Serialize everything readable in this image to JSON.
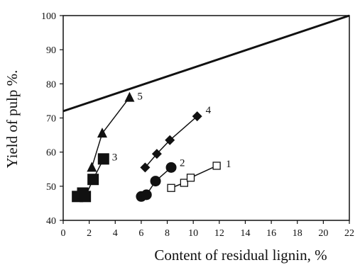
{
  "chart_data": {
    "type": "scatter",
    "title": "",
    "xlabel": "Content of residual lignin, %",
    "ylabel": "Yield of pulp %.",
    "xlim": [
      0,
      22
    ],
    "ylim": [
      40,
      100
    ],
    "xticks": [
      "0",
      "2",
      "4",
      "6",
      "8",
      "10",
      "12",
      "14",
      "16",
      "18",
      "20",
      "22"
    ],
    "yticks": [
      "40",
      "50",
      "60",
      "70",
      "80",
      "90",
      "100"
    ],
    "grid": false,
    "reference_line": {
      "x": [
        0,
        22
      ],
      "y": [
        72,
        100
      ]
    },
    "series": [
      {
        "name": "1",
        "marker": "open-square",
        "x": [
          8.3,
          9.3,
          9.8,
          11.8
        ],
        "y": [
          49.5,
          51,
          52.5,
          56
        ]
      },
      {
        "name": "2",
        "marker": "filled-circle",
        "x": [
          6.0,
          6.4,
          7.1,
          8.3
        ],
        "y": [
          47,
          47.5,
          51.5,
          55.5
        ]
      },
      {
        "name": "3",
        "marker": "filled-square",
        "x": [
          1.1,
          1.5,
          1.7,
          2.3,
          3.1
        ],
        "y": [
          47,
          48,
          47,
          52,
          58
        ]
      },
      {
        "name": "4",
        "marker": "filled-diamond",
        "x": [
          6.3,
          7.2,
          8.2,
          10.3
        ],
        "y": [
          55.5,
          59.5,
          63.5,
          70.5
        ]
      },
      {
        "name": "5",
        "marker": "filled-triangle",
        "x": [
          2.2,
          3.0,
          5.1
        ],
        "y": [
          55.5,
          65.5,
          76
        ]
      }
    ],
    "colors": {
      "ink": "#111111",
      "open_fill": "#ffffff"
    }
  }
}
